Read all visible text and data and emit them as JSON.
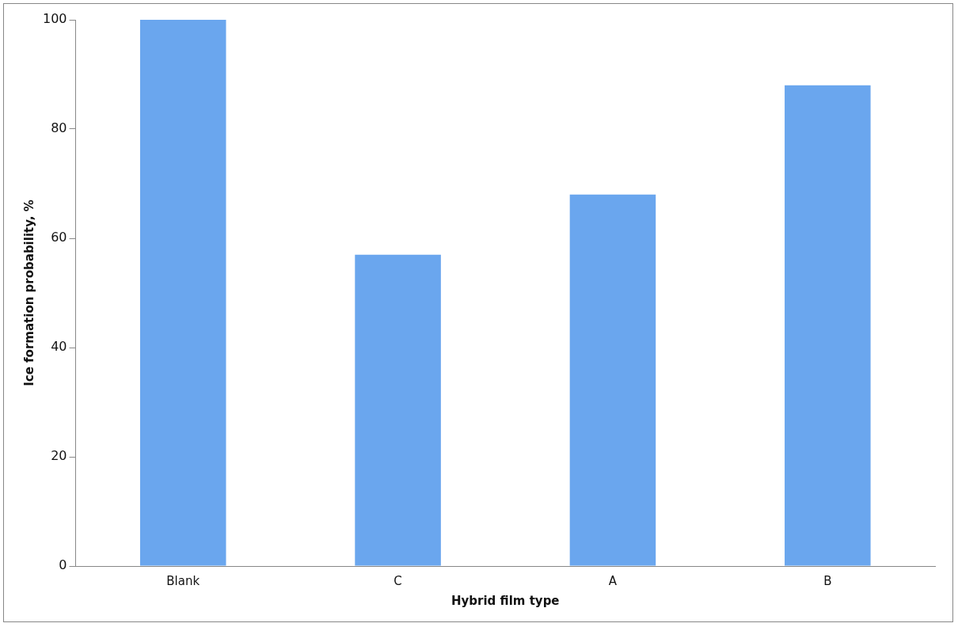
{
  "chart_data": {
    "type": "bar",
    "xlabel": "Hybrid film type",
    "ylabel": "Ice formation probability, %",
    "categories": [
      "Blank",
      "C",
      "A",
      "B"
    ],
    "values": [
      100,
      57,
      68,
      88
    ],
    "color": "#6aa6ee",
    "ylim": [
      0,
      100
    ],
    "yticks": [
      0,
      20,
      40,
      60,
      80,
      100
    ],
    "grid": false,
    "legend": false
  }
}
